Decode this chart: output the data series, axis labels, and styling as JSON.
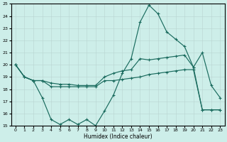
{
  "xlabel": "Humidex (Indice chaleur)",
  "bg_color": "#cdeee9",
  "line_color": "#1a6b5e",
  "grid_color": "#b8d4d0",
  "ylim": [
    15,
    25
  ],
  "xlim": [
    -0.5,
    23.5
  ],
  "yticks": [
    15,
    16,
    17,
    18,
    19,
    20,
    21,
    22,
    23,
    24,
    25
  ],
  "xticks": [
    0,
    1,
    2,
    3,
    4,
    5,
    6,
    7,
    8,
    9,
    10,
    11,
    12,
    13,
    14,
    15,
    16,
    17,
    18,
    19,
    20,
    21,
    22,
    23
  ],
  "line1_x": [
    0,
    1,
    2,
    3,
    4,
    5,
    6,
    7,
    8,
    9,
    10,
    11,
    12,
    13,
    14,
    15,
    16,
    17,
    18,
    19,
    20,
    21,
    22,
    23
  ],
  "line1_y": [
    20,
    19,
    18.7,
    17.3,
    15.5,
    15.1,
    15.5,
    15.1,
    15.5,
    15.0,
    16.2,
    17.5,
    19.3,
    20.5,
    23.5,
    24.9,
    24.2,
    22.7,
    22.1,
    21.5,
    19.8,
    21.0,
    18.3,
    17.3
  ],
  "line2_x": [
    0,
    1,
    2,
    3,
    4,
    5,
    6,
    7,
    8,
    9,
    10,
    11,
    12,
    13,
    14,
    15,
    16,
    17,
    18,
    19,
    20,
    21,
    22,
    23
  ],
  "line2_y": [
    20,
    19,
    18.7,
    18.7,
    18.5,
    18.4,
    18.4,
    18.3,
    18.3,
    18.3,
    19.0,
    19.3,
    19.5,
    19.6,
    20.5,
    20.4,
    20.5,
    20.6,
    20.7,
    20.8,
    19.8,
    16.3,
    16.3,
    16.3
  ],
  "line3_x": [
    0,
    1,
    2,
    3,
    4,
    5,
    6,
    7,
    8,
    9,
    10,
    11,
    12,
    13,
    14,
    15,
    16,
    17,
    18,
    19,
    20,
    21,
    22,
    23
  ],
  "line3_y": [
    20,
    19,
    18.7,
    18.7,
    18.2,
    18.2,
    18.2,
    18.2,
    18.2,
    18.2,
    18.7,
    18.7,
    18.8,
    18.9,
    19.0,
    19.2,
    19.3,
    19.4,
    19.5,
    19.6,
    19.6,
    16.3,
    16.3,
    16.3
  ]
}
